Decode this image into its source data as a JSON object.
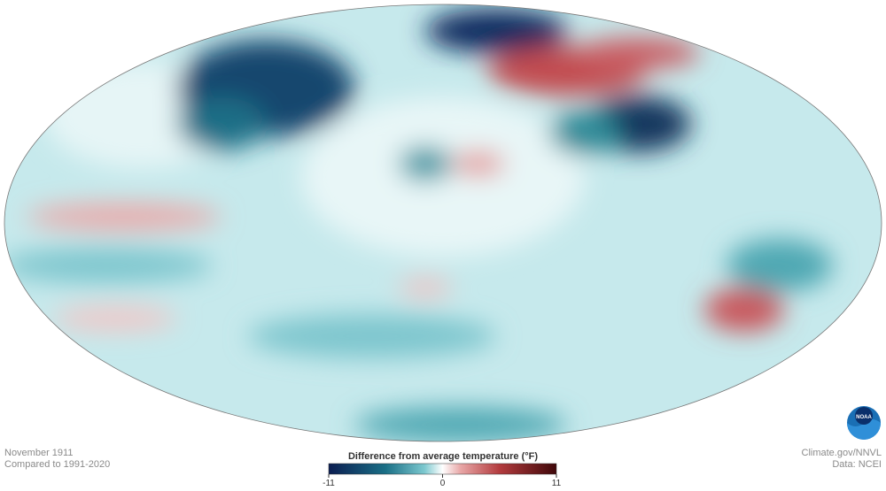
{
  "header": {
    "date": "November 1911",
    "baseline": "Compared to 1991-2020"
  },
  "legend": {
    "title": "Difference from average temperature (°F)",
    "min": -11,
    "max": 11,
    "ticks": [
      -11,
      0,
      11
    ]
  },
  "credits": {
    "source": "Climate.gov/NNVL",
    "data": "Data: NCEI",
    "logo": "NOAA"
  }
}
